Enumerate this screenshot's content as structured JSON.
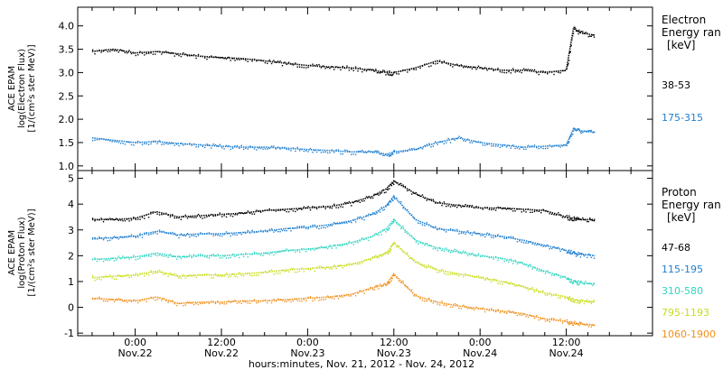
{
  "chart_data": [
    {
      "type": "scatter",
      "ylabel_lines": [
        "ACE EPAM",
        "log(Electron Flux)",
        "[1/(cm²s ster MeV)]"
      ],
      "ylim": [
        0.9,
        4.4
      ],
      "yticks": [
        1.0,
        1.5,
        2.0,
        2.5,
        3.0,
        3.5,
        4.0
      ],
      "ytick_labels": [
        "1.0",
        "1.5",
        "2.0",
        "2.5",
        "3.0",
        "3.5",
        "4.0"
      ],
      "legend_title": [
        "Electron",
        "Energy ran",
        "[keV]"
      ],
      "series": [
        {
          "name": "38-53",
          "color": "#000000",
          "x": [
            -6,
            -3,
            0,
            3,
            6,
            9,
            12,
            15,
            18,
            21,
            24,
            27,
            30,
            33,
            35,
            36,
            39,
            42,
            45,
            48,
            51,
            54,
            57,
            60,
            61,
            62,
            64
          ],
          "y": [
            3.45,
            3.5,
            3.42,
            3.45,
            3.4,
            3.35,
            3.32,
            3.3,
            3.25,
            3.2,
            3.15,
            3.12,
            3.1,
            3.05,
            3.0,
            3.0,
            3.1,
            3.25,
            3.15,
            3.1,
            3.05,
            3.05,
            3.0,
            3.05,
            3.95,
            3.85,
            3.8
          ]
        },
        {
          "name": "175-315",
          "color": "#1f7fd0",
          "x": [
            -6,
            -3,
            0,
            3,
            6,
            9,
            12,
            15,
            18,
            21,
            24,
            27,
            30,
            33,
            35,
            36,
            39,
            42,
            45,
            48,
            51,
            54,
            57,
            60,
            61,
            62,
            64
          ],
          "y": [
            1.6,
            1.55,
            1.5,
            1.52,
            1.48,
            1.45,
            1.42,
            1.4,
            1.4,
            1.38,
            1.35,
            1.33,
            1.3,
            1.3,
            1.25,
            1.3,
            1.35,
            1.5,
            1.6,
            1.5,
            1.45,
            1.4,
            1.42,
            1.45,
            1.8,
            1.75,
            1.72
          ]
        }
      ]
    },
    {
      "type": "scatter",
      "ylabel_lines": [
        "ACE EPAM",
        "log(Proton Flux)",
        "[1/(cm²s ster MeV)]"
      ],
      "ylim": [
        -1.1,
        5.3
      ],
      "yticks": [
        -1,
        0,
        1,
        2,
        3,
        4,
        5
      ],
      "ytick_labels": [
        "-1",
        "0",
        "1",
        "2",
        "3",
        "4",
        "5"
      ],
      "legend_title": [
        "Proton",
        "Energy ran",
        "[keV]"
      ],
      "series": [
        {
          "name": "47-68",
          "color": "#000000",
          "x": [
            -6,
            -3,
            0,
            3,
            6,
            9,
            12,
            15,
            18,
            21,
            24,
            27,
            30,
            33,
            35,
            36,
            39,
            42,
            45,
            48,
            51,
            54,
            57,
            60,
            61,
            62,
            64
          ],
          "y": [
            3.4,
            3.4,
            3.45,
            3.7,
            3.5,
            3.55,
            3.6,
            3.65,
            3.75,
            3.8,
            3.85,
            3.9,
            4.05,
            4.3,
            4.6,
            4.9,
            4.4,
            4.05,
            3.95,
            3.85,
            3.85,
            3.8,
            3.75,
            3.5,
            3.45,
            3.4,
            3.4
          ]
        },
        {
          "name": "115-195",
          "color": "#1f7fd0",
          "x": [
            -6,
            -3,
            0,
            3,
            6,
            9,
            12,
            15,
            18,
            21,
            24,
            27,
            30,
            33,
            35,
            36,
            39,
            42,
            45,
            48,
            51,
            54,
            57,
            60,
            61,
            62,
            64
          ],
          "y": [
            2.65,
            2.7,
            2.75,
            2.95,
            2.8,
            2.85,
            2.85,
            2.9,
            2.95,
            3.05,
            3.1,
            3.2,
            3.35,
            3.6,
            3.95,
            4.3,
            3.4,
            3.05,
            2.95,
            2.85,
            2.75,
            2.6,
            2.4,
            2.2,
            2.1,
            2.05,
            2.0
          ]
        },
        {
          "name": "310-580",
          "color": "#2fd4c0",
          "x": [
            -6,
            -3,
            0,
            3,
            6,
            9,
            12,
            15,
            18,
            21,
            24,
            27,
            30,
            33,
            35,
            36,
            39,
            42,
            45,
            48,
            51,
            54,
            57,
            60,
            61,
            62,
            64
          ],
          "y": [
            1.85,
            1.9,
            1.95,
            2.1,
            1.95,
            2.0,
            2.0,
            2.05,
            2.1,
            2.2,
            2.25,
            2.35,
            2.5,
            2.75,
            3.05,
            3.4,
            2.6,
            2.3,
            2.15,
            2.0,
            1.9,
            1.7,
            1.4,
            1.15,
            1.0,
            0.95,
            0.9
          ]
        },
        {
          "name": "795-1193",
          "color": "#c8dc1a",
          "x": [
            -6,
            -3,
            0,
            3,
            6,
            9,
            12,
            15,
            18,
            21,
            24,
            27,
            30,
            33,
            35,
            36,
            39,
            42,
            45,
            48,
            51,
            54,
            57,
            60,
            61,
            62,
            64
          ],
          "y": [
            1.15,
            1.2,
            1.25,
            1.4,
            1.2,
            1.25,
            1.25,
            1.3,
            1.35,
            1.45,
            1.5,
            1.55,
            1.65,
            1.9,
            2.1,
            2.5,
            1.75,
            1.45,
            1.3,
            1.15,
            1.0,
            0.8,
            0.55,
            0.4,
            0.3,
            0.25,
            0.2
          ]
        },
        {
          "name": "1060-1900",
          "color": "#f0901a",
          "x": [
            -6,
            -3,
            0,
            3,
            6,
            9,
            12,
            15,
            18,
            21,
            24,
            27,
            30,
            33,
            35,
            36,
            39,
            42,
            45,
            48,
            51,
            54,
            57,
            60,
            61,
            62,
            64
          ],
          "y": [
            0.35,
            0.3,
            0.25,
            0.4,
            0.15,
            0.2,
            0.2,
            0.25,
            0.25,
            0.3,
            0.35,
            0.4,
            0.5,
            0.75,
            0.9,
            1.3,
            0.45,
            0.2,
            0.05,
            -0.05,
            -0.15,
            -0.25,
            -0.45,
            -0.55,
            -0.6,
            -0.65,
            -0.7
          ]
        }
      ]
    }
  ],
  "x_axis": {
    "xlim": [
      -8,
      72
    ],
    "ticks": [
      {
        "x": 0,
        "l1": "0:00",
        "l2": "Nov.22"
      },
      {
        "x": 12,
        "l1": "12:00",
        "l2": "Nov.22"
      },
      {
        "x": 24,
        "l1": "0:00",
        "l2": "Nov.23"
      },
      {
        "x": 36,
        "l1": "12:00",
        "l2": "Nov.23"
      },
      {
        "x": 48,
        "l1": "0:00",
        "l2": "Nov.24"
      },
      {
        "x": 60,
        "l1": "12:00",
        "l2": "Nov.24"
      }
    ],
    "xlabel": "hours:minutes, Nov. 21, 2012 - Nov. 24, 2012"
  }
}
